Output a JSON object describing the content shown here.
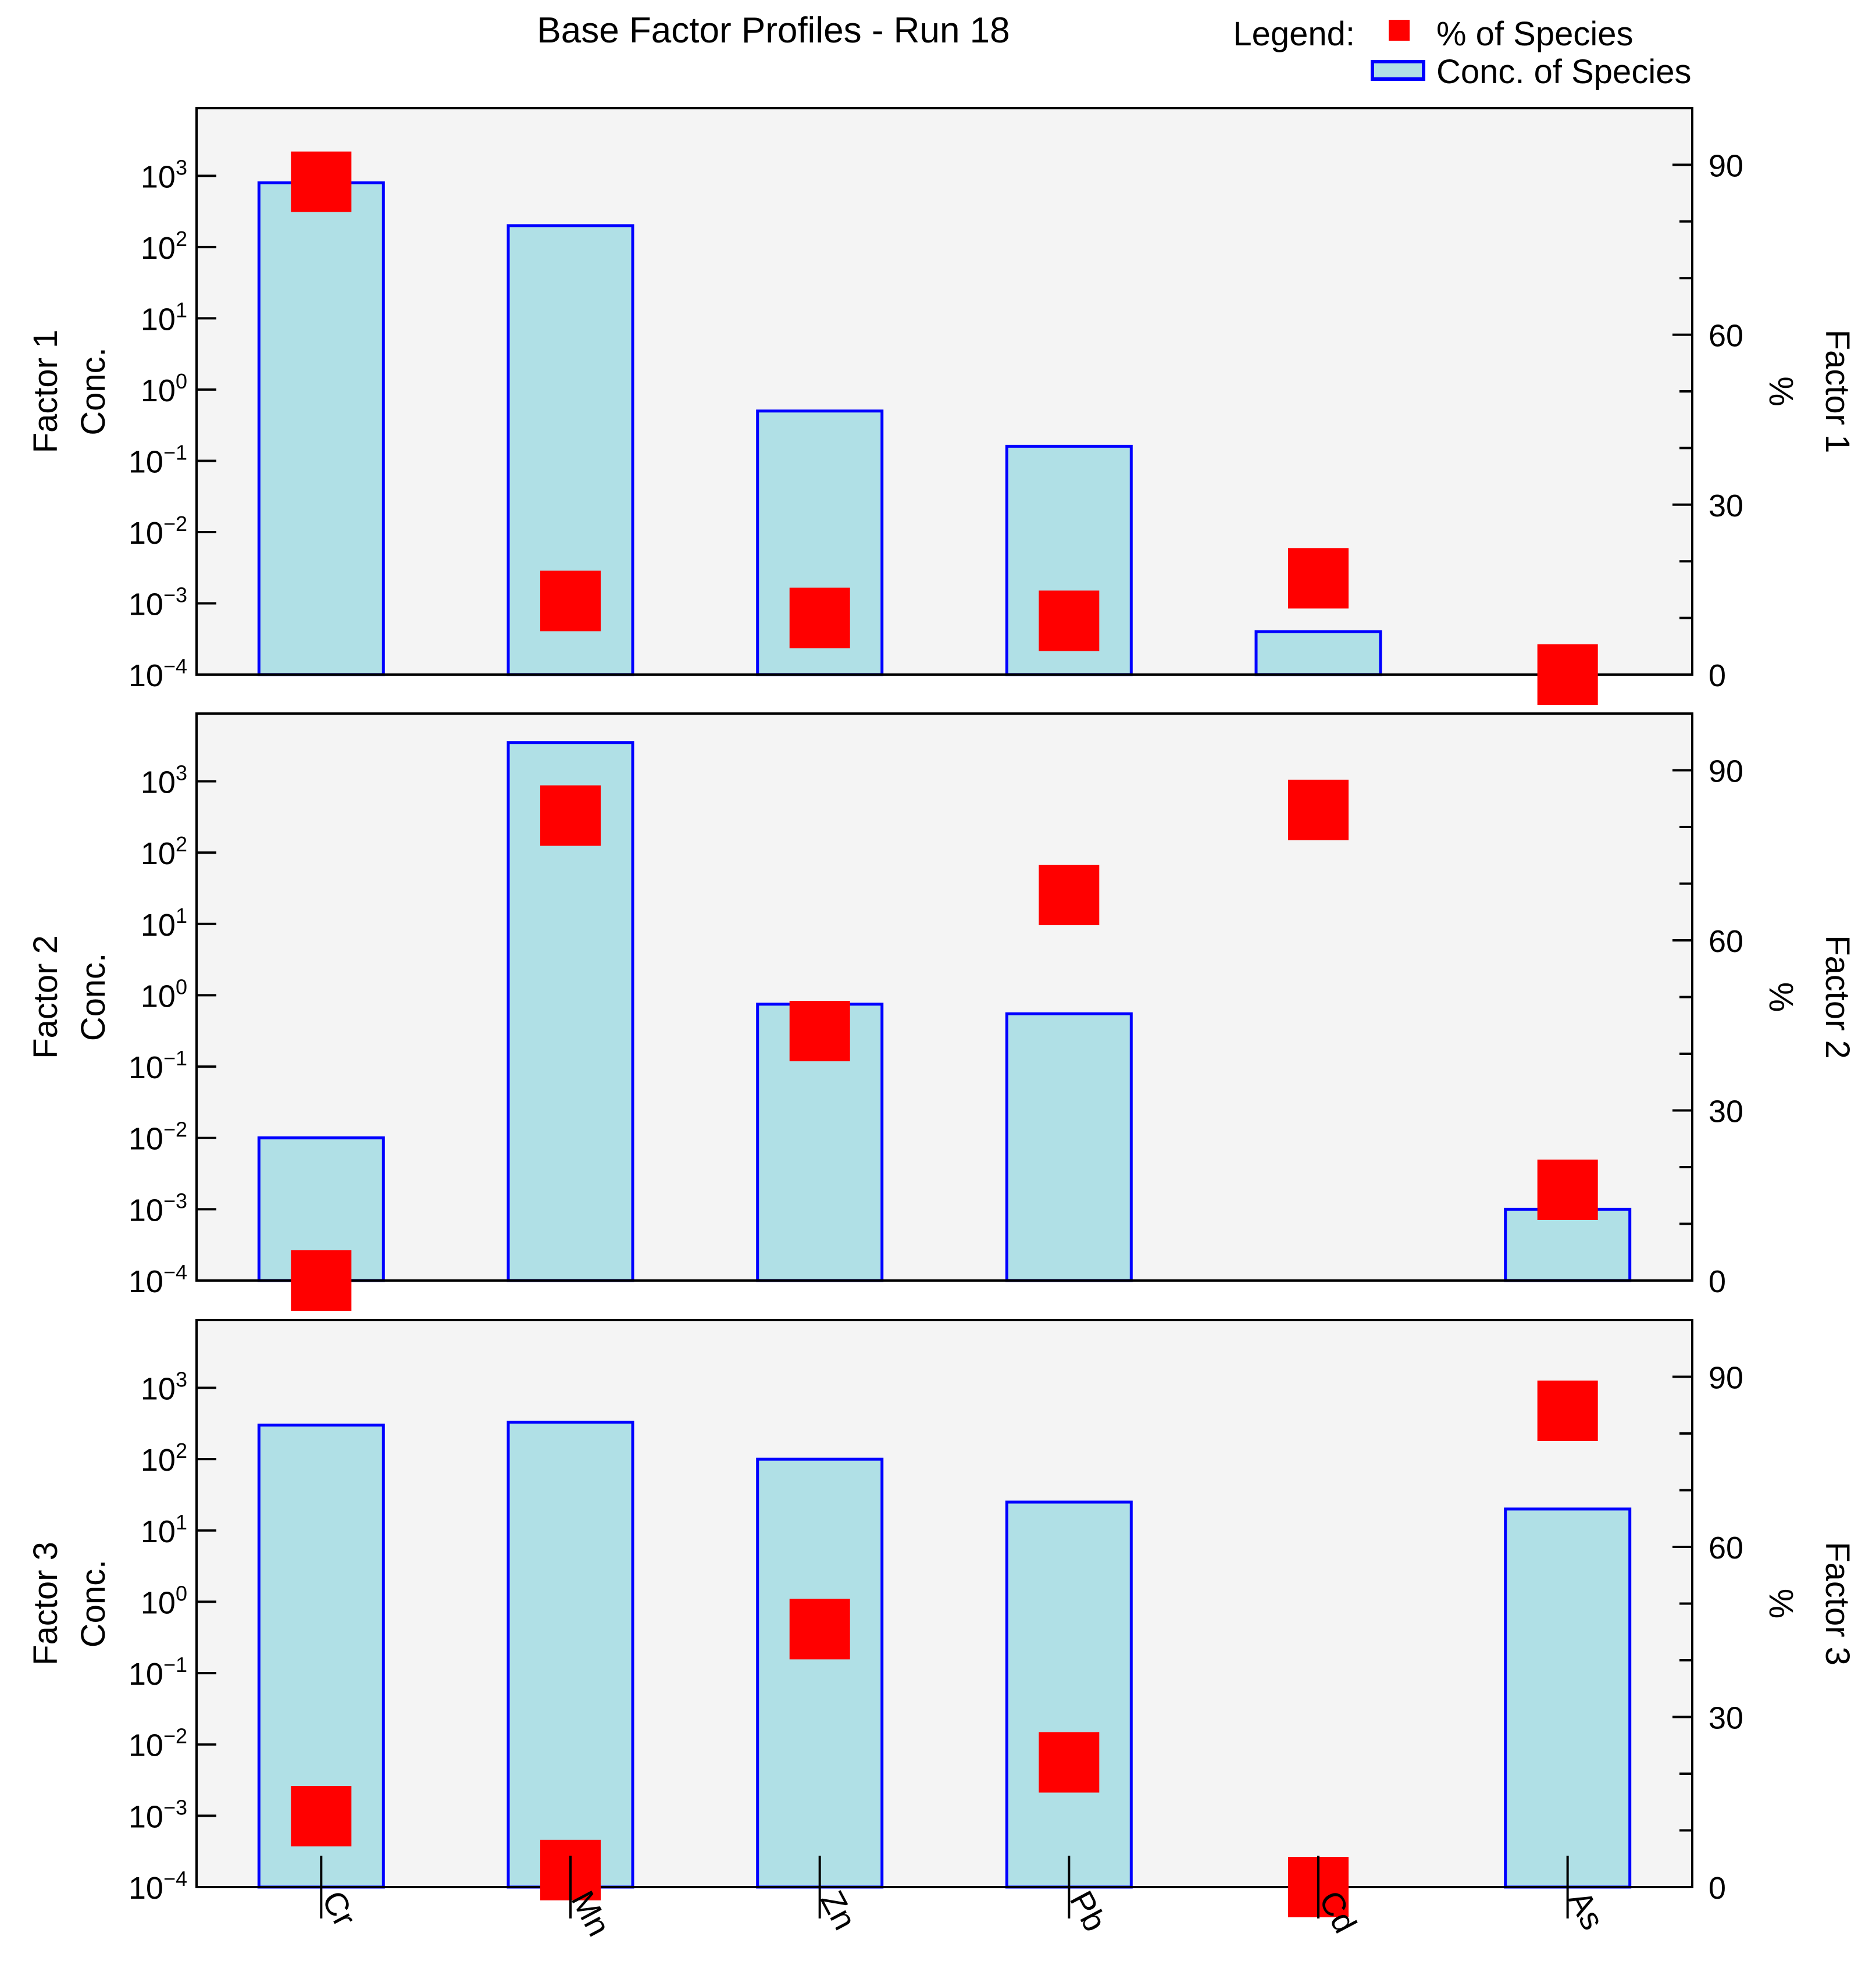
{
  "chart_data": {
    "type": "bar",
    "title": "Base Factor Profiles - Run 18",
    "legend": {
      "label": "Legend:",
      "placement": "top-right",
      "entries": [
        {
          "name": "% of Species",
          "marker": "square",
          "color": "#ff0000"
        },
        {
          "name": "Conc. of Species",
          "marker": "bar",
          "fill": "#b0e0e6",
          "stroke": "#0000ff"
        }
      ]
    },
    "categories": [
      "Cr",
      "Mn",
      "Zn",
      "Pb",
      "Cd",
      "As"
    ],
    "left_axis": {
      "scale": "log",
      "range_exponent": [
        -4,
        3.95
      ],
      "tick_exponents": [
        -4,
        -3,
        -2,
        -1,
        0,
        1,
        2,
        3
      ],
      "tick_base": "10"
    },
    "right_axis": {
      "scale": "linear",
      "range": [
        0,
        100
      ],
      "ticks": [
        0,
        30,
        60,
        90
      ]
    },
    "colors": {
      "plot_background": "#f4f4f4",
      "bar_fill": "#b0e0e6",
      "bar_stroke": "#0000ff",
      "marker": "#ff0000"
    },
    "panels": [
      {
        "conc_label": "Conc.",
        "factor_label": "Factor 1",
        "pct_label": "%",
        "conc_values": [
          800,
          200,
          0.5,
          0.16,
          0.0004,
          null
        ],
        "pct_values": [
          87,
          13,
          10,
          9.5,
          17,
          0
        ]
      },
      {
        "conc_label": "Conc.",
        "factor_label": "Factor 2",
        "pct_label": "%",
        "conc_values": [
          0.01,
          3500,
          0.75,
          0.55,
          null,
          0.001
        ],
        "pct_values": [
          0,
          82,
          44,
          68,
          83,
          16
        ]
      },
      {
        "conc_label": "Conc.",
        "factor_label": "Factor 3",
        "pct_label": "%",
        "conc_values": [
          300,
          330,
          100,
          25,
          null,
          20
        ],
        "pct_values": [
          12.5,
          3,
          45.5,
          22,
          0,
          84
        ]
      }
    ]
  }
}
